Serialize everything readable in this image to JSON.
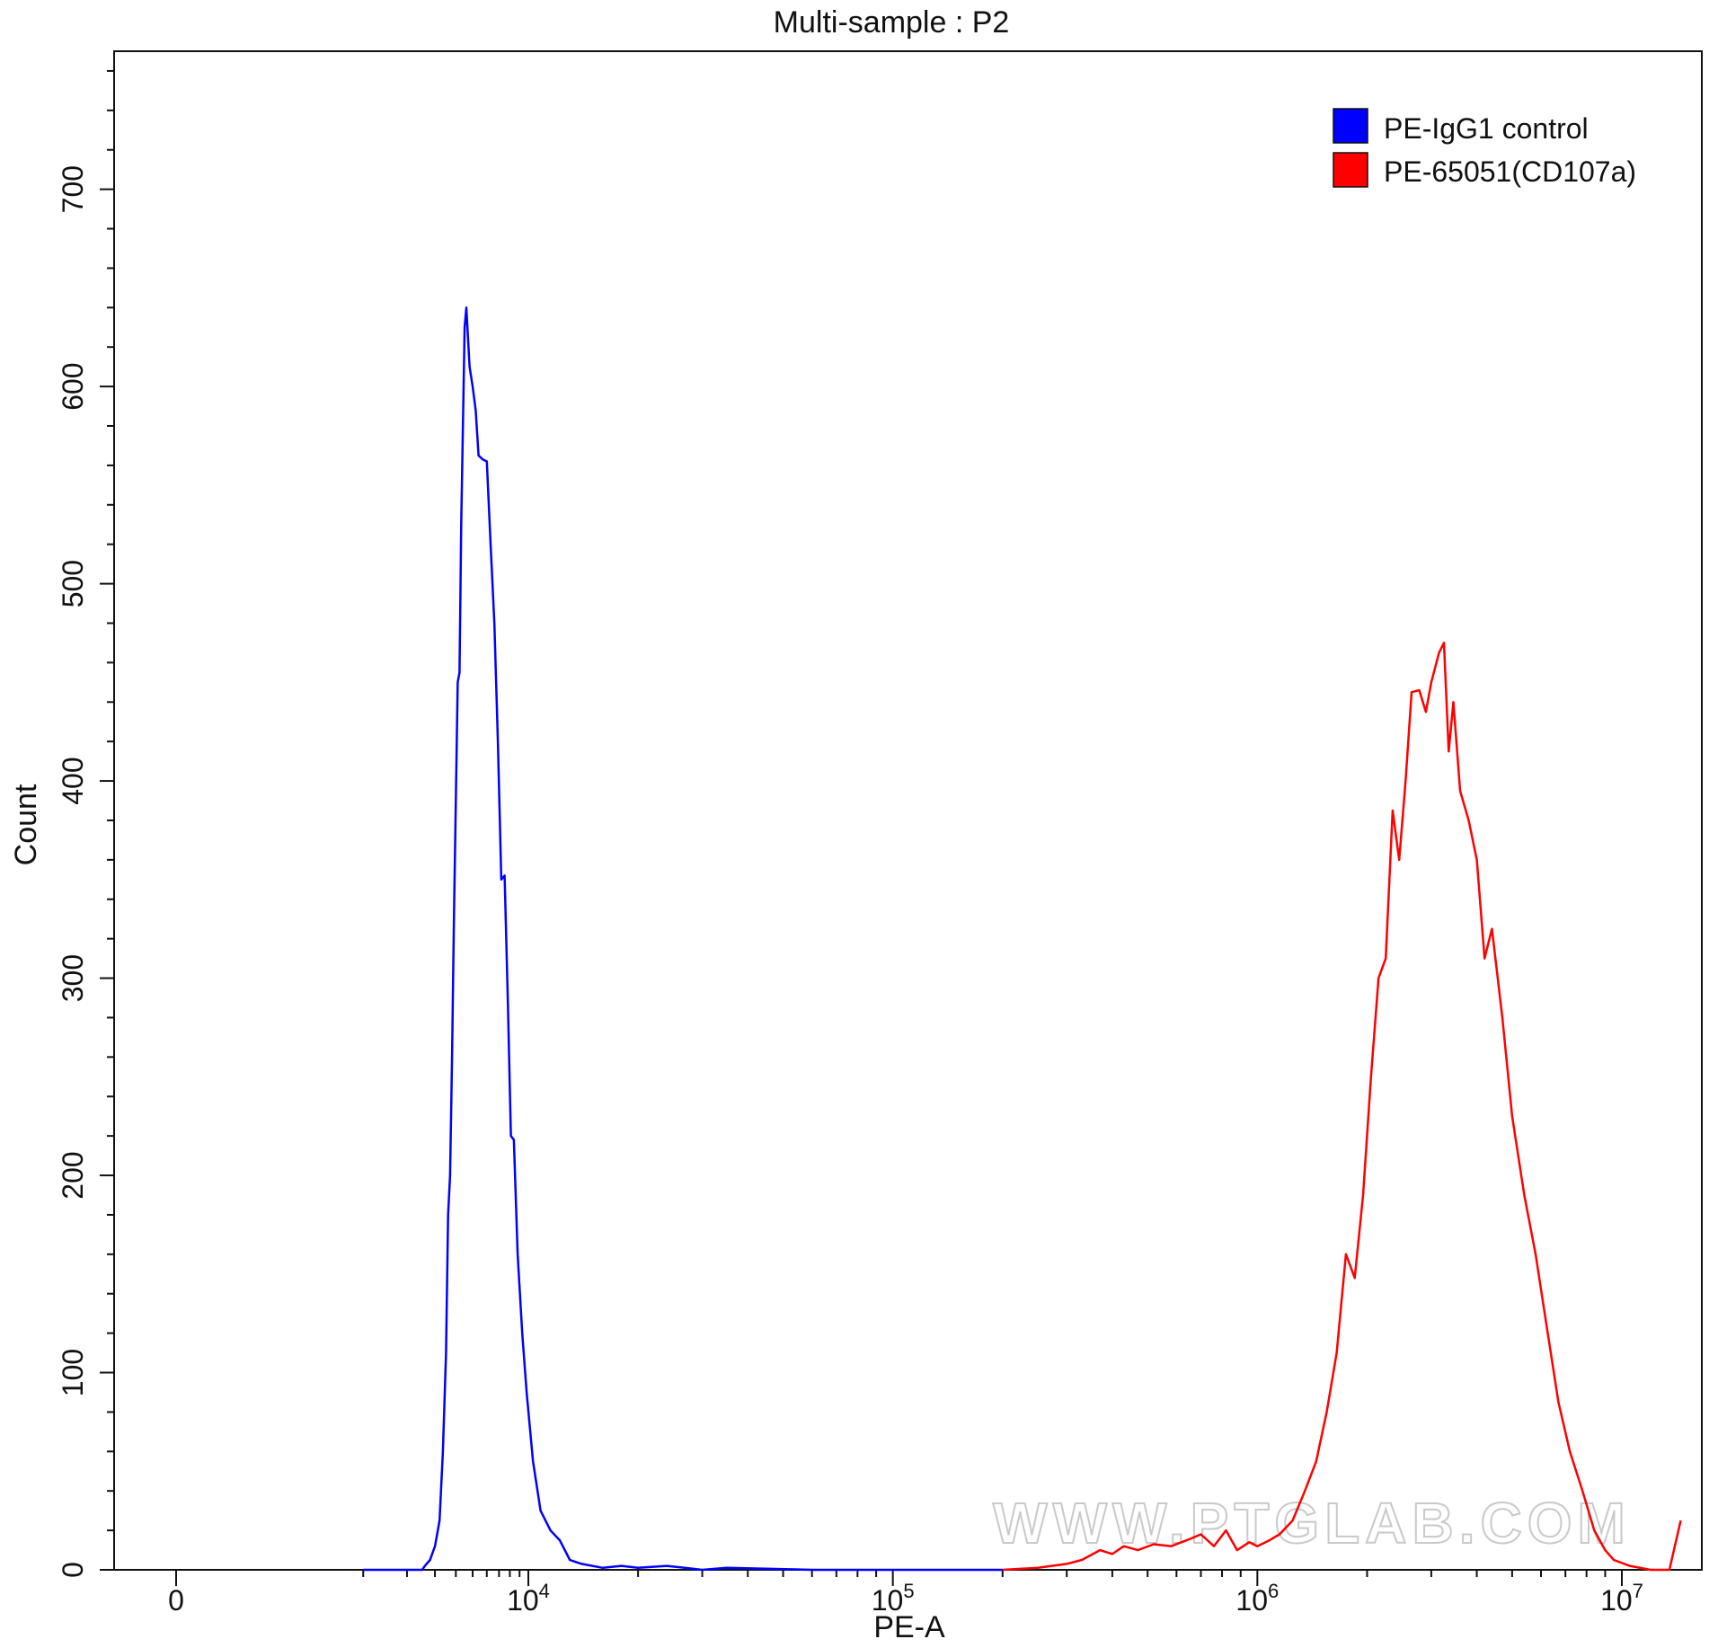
{
  "chart_data": {
    "type": "line",
    "title": "Multi-sample : P2",
    "xlabel": "PE-A",
    "ylabel": "Count",
    "ylim": [
      0,
      770
    ],
    "x_scale": "biexponential",
    "grid": false,
    "legend_position": "top-right",
    "x_ticks": [
      {
        "value": 0,
        "base": "0",
        "exp": ""
      },
      {
        "value": 10000,
        "base": "10",
        "exp": "4"
      },
      {
        "value": 100000,
        "base": "10",
        "exp": "5"
      },
      {
        "value": 1000000,
        "base": "10",
        "exp": "6"
      },
      {
        "value": 10000000,
        "base": "10",
        "exp": "7"
      }
    ],
    "y_ticks": [
      0,
      100,
      200,
      300,
      400,
      500,
      600,
      700
    ],
    "series": [
      {
        "name": "PE-IgG1 control",
        "color": "#0000ff",
        "points": [
          [
            1000,
            0
          ],
          [
            2500,
            0
          ],
          [
            2600,
            2
          ],
          [
            2800,
            5
          ],
          [
            3000,
            12
          ],
          [
            3200,
            25
          ],
          [
            3350,
            60
          ],
          [
            3500,
            110
          ],
          [
            3600,
            180
          ],
          [
            3700,
            200
          ],
          [
            3800,
            260
          ],
          [
            3900,
            330
          ],
          [
            4000,
            390
          ],
          [
            4100,
            450
          ],
          [
            4200,
            455
          ],
          [
            4300,
            530
          ],
          [
            4400,
            580
          ],
          [
            4500,
            630
          ],
          [
            4600,
            640
          ],
          [
            4700,
            625
          ],
          [
            4800,
            610
          ],
          [
            5000,
            600
          ],
          [
            5200,
            588
          ],
          [
            5400,
            565
          ],
          [
            5700,
            563
          ],
          [
            6000,
            562
          ],
          [
            6300,
            520
          ],
          [
            6600,
            480
          ],
          [
            6900,
            420
          ],
          [
            7200,
            350
          ],
          [
            7500,
            352
          ],
          [
            7800,
            290
          ],
          [
            8100,
            220
          ],
          [
            8400,
            218
          ],
          [
            8800,
            160
          ],
          [
            9300,
            120
          ],
          [
            9800,
            90
          ],
          [
            10300,
            55
          ],
          [
            10800,
            30
          ],
          [
            11500,
            20
          ],
          [
            12200,
            15
          ],
          [
            13000,
            5
          ],
          [
            14000,
            3
          ],
          [
            16000,
            1
          ],
          [
            18000,
            2
          ],
          [
            20000,
            1
          ],
          [
            24000,
            2
          ],
          [
            30000,
            0
          ],
          [
            35000,
            1
          ],
          [
            60000,
            0
          ],
          [
            200000,
            0
          ]
        ]
      },
      {
        "name": "PE-65051(CD107a)",
        "color": "#ff0000",
        "points": [
          [
            200000,
            0
          ],
          [
            250000,
            1
          ],
          [
            300000,
            3
          ],
          [
            330000,
            5
          ],
          [
            370000,
            10
          ],
          [
            400000,
            8
          ],
          [
            430000,
            12
          ],
          [
            470000,
            10
          ],
          [
            520000,
            13
          ],
          [
            580000,
            12
          ],
          [
            640000,
            15
          ],
          [
            700000,
            18
          ],
          [
            760000,
            12
          ],
          [
            820000,
            20
          ],
          [
            880000,
            10
          ],
          [
            950000,
            14
          ],
          [
            1000000,
            12
          ],
          [
            1080000,
            15
          ],
          [
            1150000,
            18
          ],
          [
            1250000,
            25
          ],
          [
            1350000,
            40
          ],
          [
            1450000,
            55
          ],
          [
            1550000,
            80
          ],
          [
            1650000,
            110
          ],
          [
            1750000,
            160
          ],
          [
            1850000,
            148
          ],
          [
            1950000,
            190
          ],
          [
            2050000,
            250
          ],
          [
            2150000,
            300
          ],
          [
            2250000,
            310
          ],
          [
            2350000,
            385
          ],
          [
            2450000,
            360
          ],
          [
            2550000,
            400
          ],
          [
            2650000,
            445
          ],
          [
            2780000,
            446
          ],
          [
            2900000,
            435
          ],
          [
            3000000,
            450
          ],
          [
            3150000,
            465
          ],
          [
            3250000,
            470
          ],
          [
            3350000,
            415
          ],
          [
            3450000,
            440
          ],
          [
            3600000,
            395
          ],
          [
            3800000,
            380
          ],
          [
            4000000,
            360
          ],
          [
            4200000,
            310
          ],
          [
            4400000,
            325
          ],
          [
            4700000,
            280
          ],
          [
            5000000,
            230
          ],
          [
            5400000,
            190
          ],
          [
            5800000,
            160
          ],
          [
            6200000,
            125
          ],
          [
            6700000,
            85
          ],
          [
            7200000,
            60
          ],
          [
            7800000,
            40
          ],
          [
            8400000,
            20
          ],
          [
            9000000,
            10
          ],
          [
            9500000,
            5
          ],
          [
            10500000,
            2
          ],
          [
            12000000,
            0
          ],
          [
            13500000,
            0
          ],
          [
            14500000,
            25
          ]
        ]
      }
    ],
    "watermark": "WWW.PTGLAB.COM"
  }
}
